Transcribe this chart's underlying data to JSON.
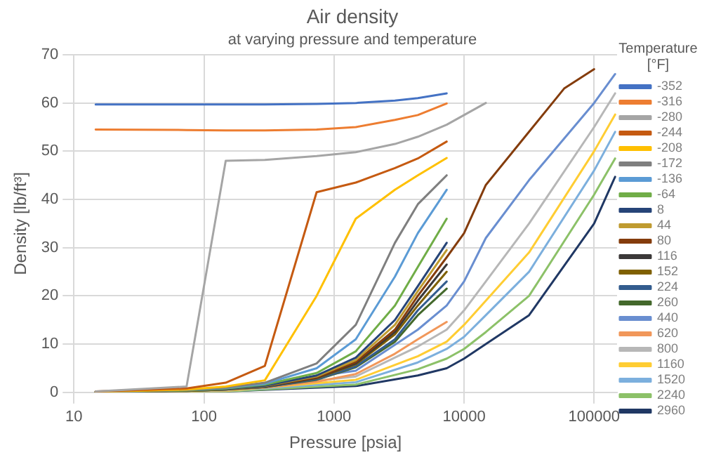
{
  "chart_data": {
    "type": "line",
    "title": "Air density",
    "subtitle": "at varying pressure and temperature",
    "xlabel": "Pressure [psia]",
    "ylabel": "Density [lb/ft³]",
    "legend_title": "Temperature [°F]",
    "log": "x",
    "xlim": [
      10,
      150000
    ],
    "xticks": [
      10,
      100,
      1000,
      10000,
      100000
    ],
    "ylim": [
      0,
      70
    ],
    "yticks": [
      0,
      10,
      20,
      30,
      40,
      50,
      60,
      70
    ],
    "grid": true,
    "legend": "right",
    "marker": "none",
    "line_style": "solid",
    "series": [
      {
        "name": "-352",
        "color": "#4472c4",
        "x": [
          14.7,
          73.5,
          147,
          294,
          735,
          1470,
          2940,
          4410,
          7350
        ],
        "values": [
          59.7,
          59.7,
          59.7,
          59.7,
          59.8,
          60.0,
          60.5,
          61.0,
          62.0
        ]
      },
      {
        "name": "-316",
        "color": "#ed7d31",
        "x": [
          14.7,
          73.5,
          147,
          294,
          735,
          1470,
          2940,
          4410,
          7350
        ],
        "values": [
          54.5,
          54.4,
          54.3,
          54.3,
          54.5,
          55.0,
          56.5,
          57.5,
          59.9
        ]
      },
      {
        "name": "-280",
        "color": "#a5a5a5",
        "x": [
          14.7,
          73.5,
          147,
          294,
          735,
          1470,
          2940,
          4410,
          7350,
          14700
        ],
        "values": [
          0.2,
          1.2,
          48.0,
          48.2,
          49.0,
          49.8,
          51.5,
          53.0,
          55.5,
          60.0
        ]
      },
      {
        "name": "-244",
        "color": "#c55a11",
        "x": [
          14.7,
          73.5,
          147,
          294,
          735,
          1470,
          2940,
          4410,
          7350
        ],
        "values": [
          0.2,
          0.8,
          2.0,
          5.5,
          41.5,
          43.5,
          46.5,
          48.5,
          52.0
        ]
      },
      {
        "name": "-208",
        "color": "#ffc000",
        "x": [
          14.7,
          73.5,
          147,
          294,
          735,
          1470,
          2940,
          4410,
          7350
        ],
        "values": [
          0.1,
          0.6,
          1.2,
          2.5,
          20,
          36,
          42,
          45,
          48.6
        ]
      },
      {
        "name": "-172",
        "color": "#7f7f7f",
        "x": [
          14.7,
          73.5,
          147,
          294,
          735,
          1470,
          2940,
          4410,
          7350
        ],
        "values": [
          0.1,
          0.5,
          1.0,
          2.0,
          6,
          14,
          31,
          39,
          45
        ]
      },
      {
        "name": "-136",
        "color": "#5b9bd5",
        "x": [
          14.7,
          73.5,
          147,
          294,
          735,
          1470,
          2940,
          4410,
          7350
        ],
        "values": [
          0.1,
          0.5,
          0.9,
          1.8,
          5,
          11,
          24,
          33,
          42
        ]
      },
      {
        "name": "-64",
        "color": "#70ad47",
        "x": [
          14.7,
          73.5,
          147,
          294,
          735,
          1470,
          2940,
          4410,
          7350
        ],
        "values": [
          0.1,
          0.4,
          0.8,
          1.6,
          4,
          8.5,
          18,
          26,
          36
        ]
      },
      {
        "name": "8",
        "color": "#264478",
        "x": [
          14.7,
          73.5,
          147,
          294,
          735,
          1470,
          2940,
          4410,
          7350
        ],
        "values": [
          0.1,
          0.4,
          0.7,
          1.4,
          3.5,
          7.2,
          15,
          22,
          31
        ]
      },
      {
        "name": "44",
        "color": "#bf9b30",
        "x": [
          14.7,
          73.5,
          147,
          294,
          735,
          1470,
          2940,
          4410,
          7350
        ],
        "values": [
          0.1,
          0.4,
          0.7,
          1.3,
          3.3,
          6.7,
          14,
          21,
          29.5
        ]
      },
      {
        "name": "80",
        "color": "#843c0c",
        "x": [
          14.7,
          73.5,
          147,
          294,
          735,
          1470,
          2940,
          4410,
          7350,
          10000,
          14700,
          29400,
          58800,
          100000
        ],
        "values": [
          0.1,
          0.4,
          0.7,
          1.3,
          3.1,
          6.3,
          13,
          20,
          28,
          33,
          43,
          53,
          63,
          67
        ]
      },
      {
        "name": "116",
        "color": "#3b3838",
        "x": [
          14.7,
          73.5,
          147,
          294,
          735,
          1470,
          2940,
          4410,
          7350
        ],
        "values": [
          0.1,
          0.4,
          0.7,
          1.2,
          3,
          6,
          12.5,
          19,
          26.5
        ]
      },
      {
        "name": "152",
        "color": "#7f6000",
        "x": [
          14.7,
          73.5,
          147,
          294,
          735,
          1470,
          2940,
          4410,
          7350
        ],
        "values": [
          0.1,
          0.3,
          0.6,
          1.2,
          2.9,
          5.8,
          12,
          18,
          25
        ]
      },
      {
        "name": "224",
        "color": "#335c8e",
        "x": [
          14.7,
          73.5,
          147,
          294,
          735,
          1470,
          2940,
          4410,
          7350
        ],
        "values": [
          0.1,
          0.3,
          0.6,
          1.1,
          2.7,
          5.4,
          11,
          17,
          23
        ]
      },
      {
        "name": "260",
        "color": "#43682b",
        "x": [
          14.7,
          73.5,
          147,
          294,
          735,
          1470,
          2940,
          4410,
          7350
        ],
        "values": [
          0.1,
          0.3,
          0.6,
          1.1,
          2.6,
          5.2,
          10.5,
          16,
          21.5
        ]
      },
      {
        "name": "440",
        "color": "#698ed0",
        "x": [
          14.7,
          147,
          1470,
          4410,
          7350,
          10000,
          14700,
          31600,
          100000,
          145000
        ],
        "values": [
          0.1,
          0.7,
          4.5,
          13,
          18,
          23,
          32,
          44,
          60,
          66
        ]
      },
      {
        "name": "620",
        "color": "#f1975a",
        "x": [
          14.7,
          73.5,
          147,
          294,
          735,
          1470,
          2940,
          4410,
          7350
        ],
        "values": [
          0.1,
          0.3,
          0.6,
          1.0,
          2.2,
          3.8,
          8,
          11,
          14.6
        ]
      },
      {
        "name": "800",
        "color": "#b7b7b7",
        "x": [
          14.7,
          147,
          1470,
          4410,
          7350,
          10000,
          14700,
          31600,
          100000,
          145000
        ],
        "values": [
          0.1,
          0.4,
          3.3,
          9.5,
          13,
          17,
          23,
          35,
          55,
          62
        ]
      },
      {
        "name": "1160",
        "color": "#ffcd33",
        "x": [
          14.7,
          147,
          1470,
          4410,
          7350,
          10000,
          14700,
          31600,
          100000,
          145000
        ],
        "values": [
          0.0,
          0.3,
          2.6,
          7.5,
          10.5,
          14,
          19,
          29,
          50,
          57.6
        ]
      },
      {
        "name": "1520",
        "color": "#7cafdd",
        "x": [
          14.7,
          147,
          1470,
          4410,
          7350,
          10000,
          14700,
          31600,
          100000,
          145000
        ],
        "values": [
          0.0,
          0.3,
          2.1,
          6.2,
          9,
          11.5,
          16,
          25,
          46,
          54
        ]
      },
      {
        "name": "2240",
        "color": "#8cc168",
        "x": [
          14.7,
          147,
          1470,
          4410,
          7350,
          10000,
          14700,
          31600,
          100000,
          145000
        ],
        "values": [
          0.0,
          0.2,
          1.6,
          4.8,
          7,
          9,
          12.5,
          20,
          41,
          48.5
        ]
      },
      {
        "name": "2960",
        "color": "#203864",
        "x": [
          14.7,
          147,
          1470,
          4410,
          7350,
          10000,
          14700,
          31600,
          100000,
          145000
        ],
        "values": [
          0.0,
          0.2,
          1.3,
          3.5,
          5,
          7,
          10,
          16,
          35,
          44.7
        ]
      }
    ]
  }
}
